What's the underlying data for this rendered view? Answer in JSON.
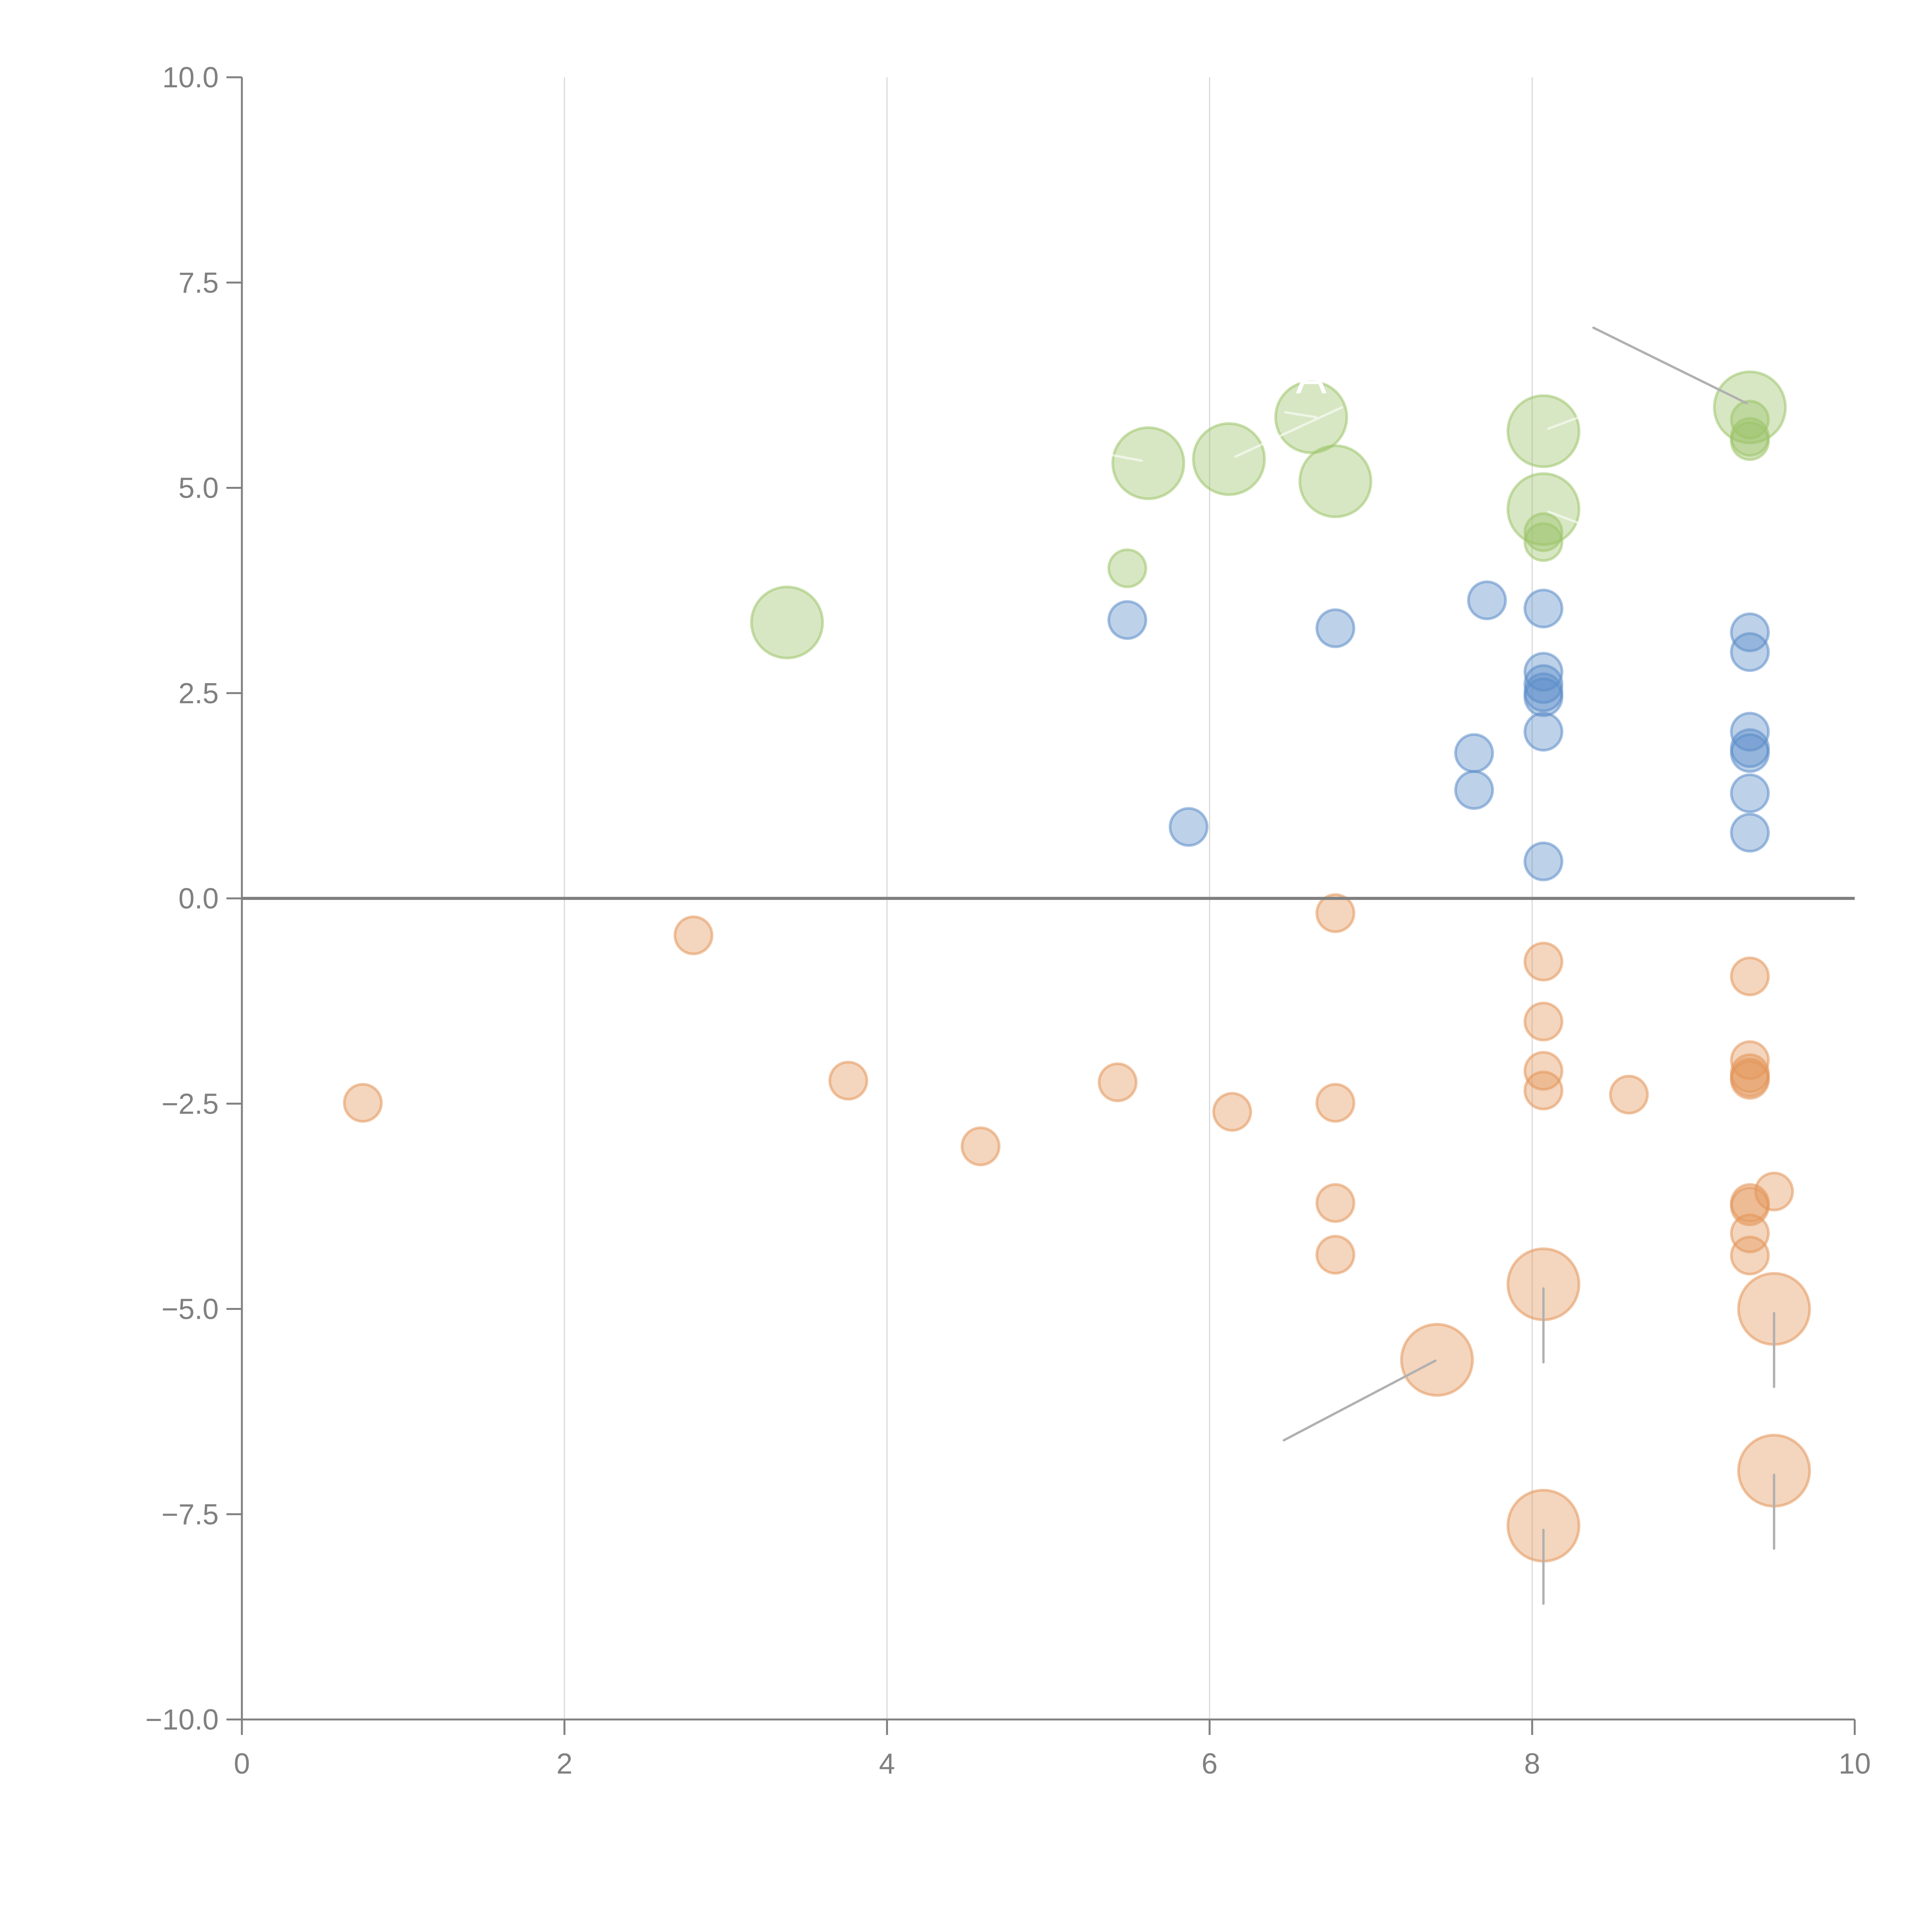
{
  "chart_data": {
    "type": "scatter",
    "title": "",
    "xlabel": "",
    "ylabel": "",
    "xlim": [
      0,
      10
    ],
    "ylim": [
      -10,
      10
    ],
    "x_ticks": [
      "0",
      "2",
      "4",
      "6",
      "8",
      "10"
    ],
    "x_tick_values": [
      0,
      2,
      4,
      6,
      8,
      10
    ],
    "y_ticks": [
      "10.0",
      "7.5",
      "5.0",
      "2.5",
      "0.0",
      "−2.5",
      "−5.0",
      "−7.5",
      "−10.0"
    ],
    "y_tick_values": [
      10,
      7.5,
      5,
      2.5,
      0,
      -2.5,
      -5,
      -7.5,
      -10
    ],
    "grid": "vertical",
    "zero_line": true,
    "legend": "none",
    "colors": {
      "blue": "#5b8cc8",
      "green": "#9cc46a",
      "orange": "#e3955a",
      "axis": "#808080",
      "grid": "#d9d9d9",
      "leader": "#b0b0b0"
    },
    "series": [
      {
        "name": "blue",
        "points": [
          {
            "x": 5.49,
            "y": 3.39,
            "size": "small"
          },
          {
            "x": 5.87,
            "y": 0.87,
            "size": "small"
          },
          {
            "x": 6.78,
            "y": 3.29,
            "size": "small"
          },
          {
            "x": 7.64,
            "y": 1.77,
            "size": "small"
          },
          {
            "x": 7.64,
            "y": 1.32,
            "size": "small"
          },
          {
            "x": 7.72,
            "y": 3.63,
            "size": "small"
          },
          {
            "x": 8.07,
            "y": 3.53,
            "size": "small"
          },
          {
            "x": 8.07,
            "y": 2.76,
            "size": "small"
          },
          {
            "x": 8.07,
            "y": 2.61,
            "size": "small"
          },
          {
            "x": 8.07,
            "y": 2.51,
            "size": "small"
          },
          {
            "x": 8.07,
            "y": 2.45,
            "size": "small"
          },
          {
            "x": 8.07,
            "y": 2.03,
            "size": "small"
          },
          {
            "x": 8.07,
            "y": 0.45,
            "size": "small"
          },
          {
            "x": 9.35,
            "y": 3.24,
            "size": "small"
          },
          {
            "x": 9.35,
            "y": 3.0,
            "size": "small"
          },
          {
            "x": 9.35,
            "y": 2.03,
            "size": "small"
          },
          {
            "x": 9.35,
            "y": 1.83,
            "size": "small"
          },
          {
            "x": 9.35,
            "y": 1.77,
            "size": "small"
          },
          {
            "x": 9.35,
            "y": 1.28,
            "size": "small"
          },
          {
            "x": 9.35,
            "y": 0.8,
            "size": "small"
          }
        ]
      },
      {
        "name": "green",
        "points": [
          {
            "x": 3.38,
            "y": 3.36,
            "size": "large"
          },
          {
            "x": 5.49,
            "y": 4.02,
            "size": "small"
          },
          {
            "x": 5.62,
            "y": 5.3,
            "size": "large"
          },
          {
            "x": 6.12,
            "y": 5.35,
            "size": "large"
          },
          {
            "x": 6.63,
            "y": 5.86,
            "size": "large"
          },
          {
            "x": 6.78,
            "y": 5.08,
            "size": "large"
          },
          {
            "x": 8.07,
            "y": 5.69,
            "size": "large"
          },
          {
            "x": 8.07,
            "y": 4.74,
            "size": "large"
          },
          {
            "x": 8.07,
            "y": 4.46,
            "size": "small"
          },
          {
            "x": 8.07,
            "y": 4.34,
            "size": "small"
          },
          {
            "x": 9.35,
            "y": 5.98,
            "size": "large"
          },
          {
            "x": 9.35,
            "y": 5.83,
            "size": "small"
          },
          {
            "x": 9.35,
            "y": 5.62,
            "size": "small"
          },
          {
            "x": 9.35,
            "y": 5.57,
            "size": "small"
          }
        ]
      },
      {
        "name": "orange",
        "points": [
          {
            "x": 0.75,
            "y": -2.49,
            "size": "small"
          },
          {
            "x": 2.8,
            "y": -0.45,
            "size": "small"
          },
          {
            "x": 3.76,
            "y": -2.22,
            "size": "small"
          },
          {
            "x": 4.58,
            "y": -3.02,
            "size": "small"
          },
          {
            "x": 5.43,
            "y": -2.24,
            "size": "small"
          },
          {
            "x": 6.14,
            "y": -2.6,
            "size": "small"
          },
          {
            "x": 6.78,
            "y": -0.18,
            "size": "small"
          },
          {
            "x": 6.78,
            "y": -2.49,
            "size": "small"
          },
          {
            "x": 6.78,
            "y": -3.71,
            "size": "small"
          },
          {
            "x": 6.78,
            "y": -4.34,
            "size": "small"
          },
          {
            "x": 8.07,
            "y": -0.77,
            "size": "small"
          },
          {
            "x": 8.07,
            "y": -1.5,
            "size": "small"
          },
          {
            "x": 8.07,
            "y": -2.1,
            "size": "small"
          },
          {
            "x": 8.07,
            "y": -2.34,
            "size": "small"
          },
          {
            "x": 8.6,
            "y": -2.39,
            "size": "small"
          },
          {
            "x": 9.35,
            "y": -0.95,
            "size": "small"
          },
          {
            "x": 9.35,
            "y": -1.97,
            "size": "small"
          },
          {
            "x": 9.35,
            "y": -2.13,
            "size": "small"
          },
          {
            "x": 9.35,
            "y": -2.18,
            "size": "small"
          },
          {
            "x": 9.35,
            "y": -2.21,
            "size": "small"
          },
          {
            "x": 9.35,
            "y": -3.71,
            "size": "small"
          },
          {
            "x": 9.35,
            "y": -3.75,
            "size": "small"
          },
          {
            "x": 9.5,
            "y": -3.57,
            "size": "small"
          },
          {
            "x": 9.35,
            "y": -4.08,
            "size": "small"
          },
          {
            "x": 9.35,
            "y": -4.35,
            "size": "small"
          },
          {
            "x": 7.41,
            "y": -5.62,
            "size": "large"
          },
          {
            "x": 8.07,
            "y": -4.7,
            "size": "large"
          },
          {
            "x": 9.5,
            "y": -5.0,
            "size": "large"
          },
          {
            "x": 9.5,
            "y": -6.97,
            "size": "large"
          },
          {
            "x": 8.07,
            "y": -7.64,
            "size": "large"
          }
        ]
      }
    ],
    "leader_lines": [
      {
        "from": [
          8.38,
          6.95
        ],
        "to": [
          9.33,
          6.03
        ],
        "color": "gray"
      },
      {
        "from": [
          7.4,
          -5.63
        ],
        "to": [
          6.46,
          -6.6
        ],
        "color": "gray"
      },
      {
        "from": [
          8.07,
          -4.75
        ],
        "to": [
          8.07,
          -5.65
        ],
        "color": "gray"
      },
      {
        "from": [
          9.5,
          -5.05
        ],
        "to": [
          9.5,
          -5.95
        ],
        "color": "gray"
      },
      {
        "from": [
          9.5,
          -7.02
        ],
        "to": [
          9.5,
          -7.92
        ],
        "color": "gray"
      },
      {
        "from": [
          8.07,
          -7.69
        ],
        "to": [
          8.07,
          -8.59
        ],
        "color": "gray"
      },
      {
        "from": [
          6.16,
          5.38
        ],
        "to": [
          6.82,
          5.98
        ],
        "color": "white"
      },
      {
        "from": [
          5.58,
          5.33
        ],
        "to": [
          5.39,
          5.4
        ],
        "color": "white"
      },
      {
        "from": [
          6.66,
          5.86
        ],
        "to": [
          6.47,
          5.92
        ],
        "color": "white"
      },
      {
        "from": [
          8.1,
          5.72
        ],
        "to": [
          8.29,
          5.86
        ],
        "color": "white"
      },
      {
        "from": [
          8.1,
          4.71
        ],
        "to": [
          8.29,
          4.57
        ],
        "color": "white"
      }
    ],
    "annotations": [
      {
        "text": "A",
        "x": 6.63,
        "y": 6.15,
        "color": "white"
      }
    ]
  }
}
